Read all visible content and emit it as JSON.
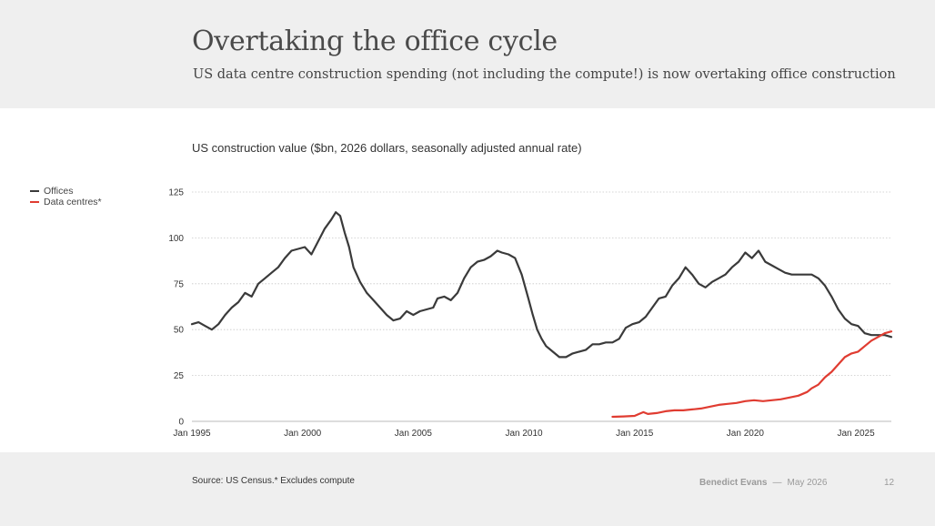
{
  "slide": {
    "title": "Overtaking the office cycle",
    "subtitle": "US data centre construction spending (not including the compute!) is now overtaking office construction"
  },
  "legend": {
    "items": [
      {
        "label": "Offices",
        "color": "#3a3a3a"
      },
      {
        "label": "Data centres*",
        "color": "#e03c31"
      }
    ]
  },
  "footer": {
    "source": "Source: US Census.* Excludes compute",
    "author": "Benedict Evans",
    "separator": "—",
    "date": "May 2026",
    "page": "12"
  },
  "chart_data": {
    "type": "line",
    "title": "US construction value ($bn, 2026 dollars, seasonally adjusted annual rate)",
    "xlabel": "",
    "ylabel": "",
    "xlim": [
      1995.0,
      2026.6
    ],
    "ylim": [
      0,
      125
    ],
    "y_ticks": [
      0,
      25,
      50,
      75,
      100,
      125
    ],
    "x_ticks": [
      {
        "value": 1995,
        "label": "Jan 1995"
      },
      {
        "value": 2000,
        "label": "Jan 2000"
      },
      {
        "value": 2005,
        "label": "Jan 2005"
      },
      {
        "value": 2010,
        "label": "Jan 2010"
      },
      {
        "value": 2015,
        "label": "Jan 2015"
      },
      {
        "value": 2020,
        "label": "Jan 2020"
      },
      {
        "value": 2025,
        "label": "Jan 2025"
      }
    ],
    "grid": true,
    "legend_position": "top-left",
    "series": [
      {
        "name": "Offices",
        "color": "#3a3a3a",
        "points": [
          [
            1995.0,
            53
          ],
          [
            1995.3,
            54
          ],
          [
            1995.6,
            52
          ],
          [
            1995.9,
            50
          ],
          [
            1996.2,
            53
          ],
          [
            1996.5,
            58
          ],
          [
            1996.8,
            62
          ],
          [
            1997.1,
            65
          ],
          [
            1997.4,
            70
          ],
          [
            1997.7,
            68
          ],
          [
            1998.0,
            75
          ],
          [
            1998.3,
            78
          ],
          [
            1998.6,
            81
          ],
          [
            1998.9,
            84
          ],
          [
            1999.2,
            89
          ],
          [
            1999.5,
            93
          ],
          [
            1999.8,
            94
          ],
          [
            2000.1,
            95
          ],
          [
            2000.4,
            91
          ],
          [
            2000.7,
            98
          ],
          [
            2001.0,
            105
          ],
          [
            2001.3,
            110
          ],
          [
            2001.5,
            114
          ],
          [
            2001.7,
            112
          ],
          [
            2001.9,
            103
          ],
          [
            2002.1,
            95
          ],
          [
            2002.3,
            84
          ],
          [
            2002.6,
            76
          ],
          [
            2002.9,
            70
          ],
          [
            2003.2,
            66
          ],
          [
            2003.5,
            62
          ],
          [
            2003.8,
            58
          ],
          [
            2004.1,
            55
          ],
          [
            2004.4,
            56
          ],
          [
            2004.7,
            60
          ],
          [
            2005.0,
            58
          ],
          [
            2005.3,
            60
          ],
          [
            2005.6,
            61
          ],
          [
            2005.9,
            62
          ],
          [
            2006.1,
            67
          ],
          [
            2006.4,
            68
          ],
          [
            2006.7,
            66
          ],
          [
            2007.0,
            70
          ],
          [
            2007.3,
            78
          ],
          [
            2007.6,
            84
          ],
          [
            2007.9,
            87
          ],
          [
            2008.2,
            88
          ],
          [
            2008.5,
            90
          ],
          [
            2008.8,
            93
          ],
          [
            2009.0,
            92
          ],
          [
            2009.3,
            91
          ],
          [
            2009.6,
            89
          ],
          [
            2009.9,
            80
          ],
          [
            2010.2,
            67
          ],
          [
            2010.4,
            58
          ],
          [
            2010.6,
            50
          ],
          [
            2010.8,
            45
          ],
          [
            2011.0,
            41
          ],
          [
            2011.3,
            38
          ],
          [
            2011.6,
            35
          ],
          [
            2011.9,
            35
          ],
          [
            2012.2,
            37
          ],
          [
            2012.5,
            38
          ],
          [
            2012.8,
            39
          ],
          [
            2013.1,
            42
          ],
          [
            2013.4,
            42
          ],
          [
            2013.7,
            43
          ],
          [
            2014.0,
            43
          ],
          [
            2014.3,
            45
          ],
          [
            2014.6,
            51
          ],
          [
            2014.9,
            53
          ],
          [
            2015.2,
            54
          ],
          [
            2015.5,
            57
          ],
          [
            2015.8,
            62
          ],
          [
            2016.1,
            67
          ],
          [
            2016.4,
            68
          ],
          [
            2016.7,
            74
          ],
          [
            2017.0,
            78
          ],
          [
            2017.3,
            84
          ],
          [
            2017.6,
            80
          ],
          [
            2017.9,
            75
          ],
          [
            2018.2,
            73
          ],
          [
            2018.5,
            76
          ],
          [
            2018.8,
            78
          ],
          [
            2019.1,
            80
          ],
          [
            2019.4,
            84
          ],
          [
            2019.7,
            87
          ],
          [
            2020.0,
            92
          ],
          [
            2020.3,
            89
          ],
          [
            2020.6,
            93
          ],
          [
            2020.9,
            87
          ],
          [
            2021.2,
            85
          ],
          [
            2021.5,
            83
          ],
          [
            2021.8,
            81
          ],
          [
            2022.1,
            80
          ],
          [
            2022.4,
            80
          ],
          [
            2022.7,
            80
          ],
          [
            2023.0,
            80
          ],
          [
            2023.3,
            78
          ],
          [
            2023.6,
            74
          ],
          [
            2023.9,
            68
          ],
          [
            2024.2,
            61
          ],
          [
            2024.5,
            56
          ],
          [
            2024.8,
            53
          ],
          [
            2025.1,
            52
          ],
          [
            2025.4,
            48
          ],
          [
            2025.7,
            47
          ],
          [
            2026.0,
            47
          ],
          [
            2026.3,
            47
          ],
          [
            2026.6,
            46
          ]
        ]
      },
      {
        "name": "Data centres*",
        "color": "#e03c31",
        "points": [
          [
            2014.0,
            2.5
          ],
          [
            2014.5,
            2.7
          ],
          [
            2015.0,
            3
          ],
          [
            2015.2,
            4
          ],
          [
            2015.4,
            5
          ],
          [
            2015.6,
            4
          ],
          [
            2016.0,
            4.5
          ],
          [
            2016.4,
            5.5
          ],
          [
            2016.8,
            6
          ],
          [
            2017.2,
            6
          ],
          [
            2017.6,
            6.5
          ],
          [
            2018.0,
            7
          ],
          [
            2018.4,
            8
          ],
          [
            2018.8,
            9
          ],
          [
            2019.2,
            9.5
          ],
          [
            2019.6,
            10
          ],
          [
            2020.0,
            11
          ],
          [
            2020.4,
            11.5
          ],
          [
            2020.8,
            11
          ],
          [
            2021.2,
            11.5
          ],
          [
            2021.6,
            12
          ],
          [
            2022.0,
            13
          ],
          [
            2022.4,
            14
          ],
          [
            2022.8,
            16
          ],
          [
            2023.0,
            18
          ],
          [
            2023.3,
            20
          ],
          [
            2023.6,
            24
          ],
          [
            2023.9,
            27
          ],
          [
            2024.2,
            31
          ],
          [
            2024.5,
            35
          ],
          [
            2024.8,
            37
          ],
          [
            2025.1,
            38
          ],
          [
            2025.4,
            41
          ],
          [
            2025.7,
            44
          ],
          [
            2026.0,
            46
          ],
          [
            2026.3,
            48
          ],
          [
            2026.6,
            49
          ]
        ]
      }
    ]
  }
}
